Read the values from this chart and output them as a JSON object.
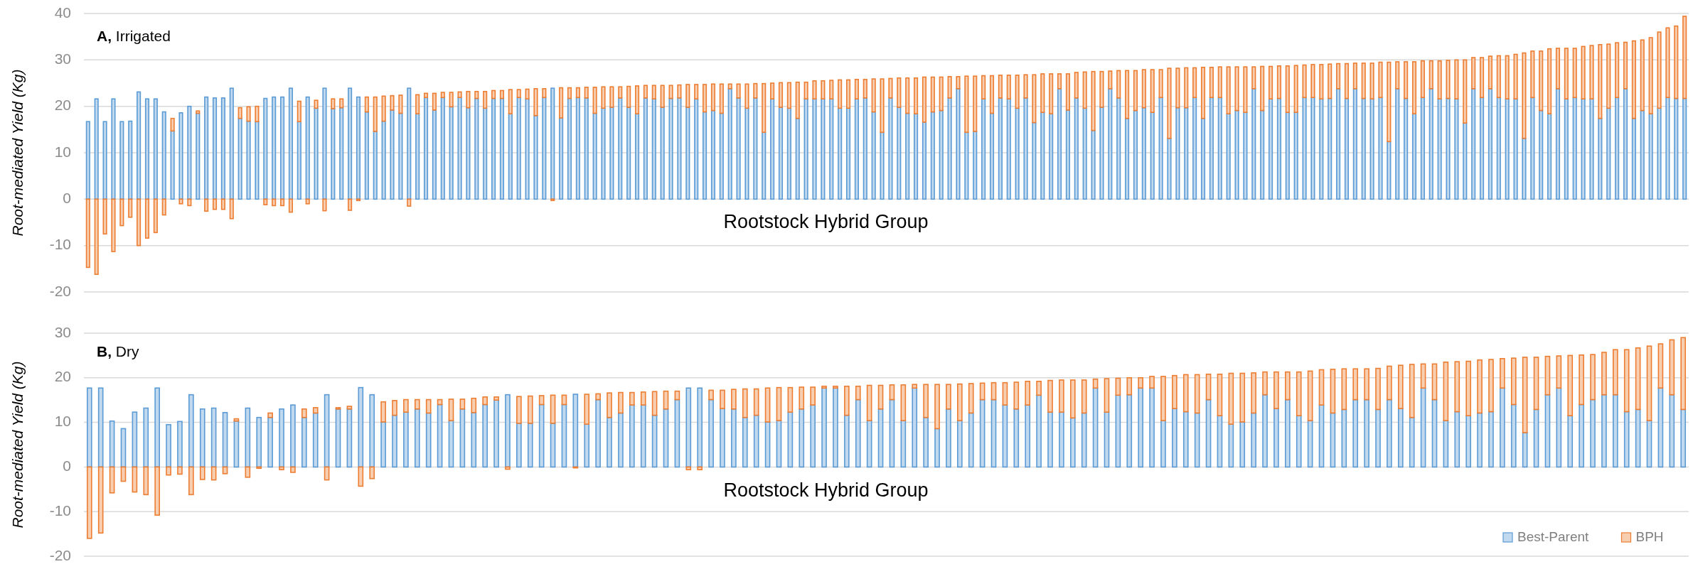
{
  "chart_data": [
    {
      "type": "bar",
      "title": "A, Irrigated",
      "xlabel": "Rootstock Hybrid Group",
      "ylabel": "Root-mediated Yield (Kg)",
      "stacked": true,
      "ylim": [
        -20,
        40
      ],
      "yticks": [
        -20,
        -10,
        0,
        10,
        20,
        30,
        40
      ],
      "grid": "y",
      "legend": false,
      "categories": [
        null,
        null,
        null,
        null,
        null,
        null,
        null,
        null,
        null,
        null,
        null,
        null,
        null,
        null,
        null,
        null,
        null,
        null,
        null,
        null,
        null,
        null,
        null,
        null,
        null,
        null,
        null,
        null,
        null,
        null,
        null,
        null,
        null,
        null,
        null,
        null,
        null,
        null,
        null,
        null,
        null,
        null,
        null,
        null,
        null,
        null,
        null,
        null,
        null,
        null,
        null,
        null,
        null,
        null,
        null,
        null,
        null,
        null,
        null,
        null,
        null,
        null,
        null,
        null,
        null,
        null,
        null,
        null,
        null,
        null,
        null,
        null,
        null,
        null,
        null,
        null,
        null,
        null,
        null,
        null,
        null,
        null,
        null,
        null,
        null,
        null,
        null,
        null,
        null,
        null,
        null,
        null,
        null,
        null,
        null,
        null,
        null,
        null,
        null,
        null,
        null,
        null,
        null,
        null,
        null,
        null,
        null,
        null,
        null,
        null,
        null,
        null,
        null,
        null,
        null,
        null,
        null,
        null,
        null,
        null,
        null,
        null,
        null,
        null,
        null,
        null,
        null,
        null,
        null,
        null,
        null,
        null,
        null,
        null,
        null,
        null,
        null,
        null,
        null,
        null,
        null,
        null,
        null,
        null,
        null,
        null,
        null,
        null,
        null,
        null,
        null,
        null,
        null,
        null,
        null,
        null,
        null,
        null,
        null,
        null,
        null,
        null,
        null,
        null,
        null,
        null,
        null,
        null,
        null,
        null,
        null,
        null,
        null,
        null,
        null,
        null,
        null,
        null,
        null,
        null,
        null,
        null,
        null,
        null,
        null,
        null,
        null,
        null,
        null,
        null
      ],
      "series": [
        {
          "color": "#5b9bd5",
          "values": [
            16.7,
            21.6,
            16.7,
            21.6,
            16.7,
            16.8,
            23.1,
            21.6,
            21.6,
            18.8,
            14.7,
            18.6,
            20,
            18.5,
            22,
            21.8,
            21.8,
            23.9,
            17.4,
            16.8,
            16.7,
            21.7,
            22,
            22,
            23.9,
            16.7,
            22,
            19.6,
            23.9,
            19.5,
            19.7,
            23.9,
            22,
            18.8,
            14.6,
            16.8,
            19.2,
            18.5,
            23.9,
            18.4,
            21.9,
            19.2,
            21.9,
            19.9,
            21.9,
            19.7,
            21.7,
            19.6,
            21.7,
            21.7,
            18.4,
            21.9,
            21.6,
            18,
            21.9,
            23.9,
            17.5,
            21.7,
            21.9,
            21.8,
            18.5,
            19.6,
            19.8,
            21.8,
            19.8,
            18.4,
            21.8,
            21.6,
            19.8,
            21.7,
            21.8,
            19.8,
            21.6,
            18.8,
            19.1,
            18.5,
            23.8,
            21.8,
            19.6,
            21.8,
            14.4,
            21.6,
            19.8,
            19.6,
            17.4,
            21.6,
            21.6,
            21.6,
            21.6,
            19.6,
            19.6,
            21.6,
            21.8,
            18.8,
            14.4,
            21.8,
            19.8,
            18.5,
            18.4,
            16.6,
            18.8,
            19.1,
            21.8,
            23.8,
            14.4,
            14.6,
            21.6,
            18.5,
            21.8,
            21.6,
            19.6,
            21.8,
            16.5,
            18.7,
            18.4,
            23.8,
            19.2,
            21.8,
            19.6,
            14.8,
            19.8,
            23.8,
            21.8,
            17.4,
            19.1,
            19.7,
            18.7,
            21.9,
            13.1,
            19.7,
            19.7,
            21.9,
            17.4,
            21.9,
            21.9,
            18.4,
            19.1,
            18.7,
            23.8,
            19.1,
            21.6,
            21.7,
            18.7,
            18.7,
            21.9,
            21.9,
            21.6,
            21.7,
            23.8,
            21.7,
            23.8,
            21.7,
            21.6,
            21.9,
            12.4,
            23.8,
            21.7,
            18.4,
            21.9,
            23.8,
            21.6,
            21.7,
            21.6,
            16.4,
            23.8,
            21.9,
            23.8,
            21.9,
            21.6,
            21.6,
            13.1,
            21.9,
            19.1,
            18.4,
            23.8,
            21.6,
            21.9,
            21.6,
            21.6,
            17.4,
            19.6,
            21.9,
            23.8,
            17.4,
            19.1,
            18.4,
            19.6,
            21.9,
            21.7,
            21.7
          ]
        },
        {
          "color": "#ed7d31",
          "values": [
            -14.7,
            -16.2,
            -7.5,
            -11.3,
            -5.7,
            -3.9,
            -10,
            -8.4,
            -7.2,
            -3.4,
            2.7,
            -1,
            -1.4,
            0.5,
            -2.6,
            -2.2,
            -2.2,
            -4.2,
            2.3,
            3.1,
            3.3,
            -1.2,
            -1.4,
            -1.4,
            -2.8,
            4.4,
            -1,
            1.7,
            -2.5,
            2.1,
            1.9,
            -2.4,
            -0.3,
            3.2,
            7.4,
            5.4,
            3.1,
            3.9,
            -1.5,
            4.1,
            0.9,
            3.6,
            1.1,
            3.1,
            1.2,
            3.5,
            1.5,
            3.6,
            1.7,
            1.7,
            5.2,
            1.7,
            2.1,
            5.8,
            1.9,
            -0.3,
            6.5,
            2.3,
            2.1,
            2.3,
            5.6,
            4.6,
            4.4,
            2.4,
            4.5,
            6,
            2.7,
            2.9,
            4.7,
            2.8,
            2.8,
            4.9,
            3.1,
            5.9,
            5.7,
            6.3,
            1,
            3,
            5.2,
            3.1,
            10.5,
            3.4,
            5.3,
            5.5,
            7.8,
            3.6,
            3.9,
            3.9,
            4,
            6.1,
            6.1,
            4.2,
            4,
            7.1,
            11.5,
            4.2,
            6.3,
            7.6,
            7.7,
            9.7,
            7.5,
            7.2,
            4.6,
            2.6,
            12.1,
            11.9,
            5,
            8.1,
            4.9,
            5.1,
            7.1,
            5,
            10.3,
            8.3,
            8.6,
            3.2,
            7.8,
            5.5,
            7.8,
            12.7,
            7.7,
            3.8,
            5.9,
            10.3,
            8.6,
            8.2,
            9.2,
            6,
            15.1,
            8.5,
            8.6,
            6.4,
            11,
            6.5,
            6.6,
            10.1,
            9.4,
            9.8,
            4.7,
            9.5,
            7,
            7,
            10,
            10.1,
            7,
            7.1,
            7.4,
            7.4,
            5.4,
            7.5,
            5.5,
            7.6,
            7.7,
            7.6,
            17.1,
            5.8,
            7.9,
            11.2,
            7.9,
            6,
            8.2,
            8.2,
            8.4,
            13.6,
            6.7,
            8.6,
            7,
            9,
            9.3,
            9.6,
            18.4,
            10,
            12.8,
            14,
            8.7,
            10.9,
            10.6,
            11.3,
            11.5,
            15.9,
            13.8,
            11.8,
            10,
            16.7,
            15.2,
            16.4,
            16.4,
            15,
            15.6,
            17.7
          ]
        }
      ]
    },
    {
      "type": "bar",
      "title": "B, Dry",
      "xlabel": "Rootstock Hybrid Group",
      "ylabel": "Root-mediated Yield (Kg)",
      "stacked": true,
      "ylim": [
        -20,
        30
      ],
      "yticks": [
        -20,
        -10,
        0,
        10,
        20,
        30
      ],
      "grid": "y",
      "legend": "bottom right",
      "categories": [
        null,
        null,
        null,
        null,
        null,
        null,
        null,
        null,
        null,
        null,
        null,
        null,
        null,
        null,
        null,
        null,
        null,
        null,
        null,
        null,
        null,
        null,
        null,
        null,
        null,
        null,
        null,
        null,
        null,
        null,
        null,
        null,
        null,
        null,
        null,
        null,
        null,
        null,
        null,
        null,
        null,
        null,
        null,
        null,
        null,
        null,
        null,
        null,
        null,
        null,
        null,
        null,
        null,
        null,
        null,
        null,
        null,
        null,
        null,
        null,
        null,
        null,
        null,
        null,
        null,
        null,
        null,
        null,
        null,
        null,
        null,
        null,
        null,
        null,
        null,
        null,
        null,
        null,
        null,
        null,
        null,
        null,
        null,
        null,
        null,
        null,
        null,
        null,
        null,
        null,
        null,
        null,
        null,
        null,
        null,
        null,
        null,
        null,
        null,
        null,
        null,
        null,
        null,
        null,
        null,
        null,
        null,
        null,
        null,
        null,
        null,
        null,
        null,
        null,
        null,
        null,
        null,
        null,
        null,
        null,
        null,
        null,
        null,
        null,
        null,
        null,
        null,
        null,
        null,
        null,
        null,
        null,
        null,
        null,
        null,
        null,
        null,
        null,
        null,
        null,
        null,
        null
      ],
      "series": [
        {
          "name": "Best-Parent",
          "color": "#5b9bd5",
          "values": [
            17.7,
            17.7,
            10.3,
            8.6,
            12.3,
            13.2,
            17.7,
            9.5,
            10.2,
            16.2,
            13,
            13.2,
            12.2,
            10.3,
            13.2,
            11.1,
            11.1,
            13,
            13.9,
            11.1,
            12.1,
            16.2,
            13,
            13,
            17.8,
            16.2,
            10.1,
            11.6,
            12.3,
            13,
            12.1,
            14,
            10.4,
            13,
            12.2,
            14,
            15,
            16.2,
            9.8,
            9.8,
            14,
            9.8,
            14,
            16.3,
            9.6,
            15.1,
            11.1,
            12.1,
            13.9,
            13.9,
            11.6,
            13,
            15.1,
            17.7,
            17.7,
            15.1,
            13.1,
            13,
            11.1,
            11.6,
            10.1,
            10.4,
            12.3,
            13,
            13.9,
            17.7,
            17.7,
            11.6,
            15.1,
            10.4,
            13,
            15.1,
            10.4,
            17.7,
            11.1,
            8.6,
            13,
            10.4,
            12.1,
            15.1,
            15.1,
            13.9,
            13,
            13.9,
            16.1,
            12.3,
            12.3,
            11,
            12.1,
            17.7,
            12.3,
            16.1,
            16.2,
            17.7,
            17.7,
            10.4,
            13.1,
            12.4,
            12.1,
            15.1,
            11.5,
            9.6,
            10.1,
            12.1,
            16.2,
            13.1,
            15.1,
            11.5,
            10.4,
            13.9,
            12.1,
            12.9,
            15.1,
            15.1,
            12.9,
            15.1,
            13.1,
            11.1,
            17.7,
            15.1,
            10.4,
            12.4,
            11.5,
            12.1,
            12.4,
            17.7,
            14,
            7.7,
            12.9,
            16.2,
            17.7,
            11.5,
            14,
            15.1,
            16.2,
            16.2,
            12.4,
            12.9,
            10.4,
            17.7,
            16.2,
            12.9
          ]
        },
        {
          "name": "BPH",
          "color": "#ed7d31",
          "values": [
            -16,
            -14.8,
            -5.8,
            -3.2,
            -5.6,
            -6.2,
            -10.8,
            -1.8,
            -1.6,
            -6.2,
            -2.8,
            -2.9,
            -1.5,
            0.5,
            -2.3,
            -0.3,
            1,
            -0.6,
            -1.2,
            1.9,
            1.2,
            -2.9,
            0.3,
            0.6,
            -4.3,
            -2.6,
            4.5,
            3.3,
            2.8,
            2.1,
            3,
            1.1,
            4.8,
            2.2,
            3.2,
            1.7,
            0.7,
            -0.5,
            6,
            6.1,
            2,
            6.3,
            2.1,
            -0.2,
            6.7,
            1.3,
            5.5,
            4.6,
            2.8,
            2.9,
            5.3,
            4,
            1.9,
            -0.6,
            -0.6,
            2.1,
            4.1,
            4.4,
            6.4,
            5.9,
            7.6,
            7.4,
            5.5,
            4.9,
            4,
            0.4,
            0.4,
            6.5,
            3,
            7.9,
            5.3,
            3.3,
            8,
            0.8,
            7.4,
            9.9,
            5.5,
            8.2,
            6.6,
            3.7,
            3.8,
            5,
            6,
            5.3,
            3.1,
            7.1,
            7.2,
            8.5,
            7.4,
            2,
            7.5,
            3.8,
            3.8,
            2.3,
            2.6,
            9.9,
            7.4,
            8.3,
            8.6,
            5.7,
            9.3,
            11.4,
            10.9,
            9,
            5.1,
            8.2,
            6.2,
            9.8,
            11.1,
            7.9,
            9.8,
            9.1,
            6.9,
            6.9,
            9.2,
            7.5,
            9.7,
            11.9,
            5.4,
            8,
            13.1,
            11.2,
            12.2,
            11.9,
            11.7,
            6.6,
            10.4,
            16.9,
            11.7,
            8.6,
            7.2,
            13.5,
            11.1,
            10.1,
            9.5,
            10.1,
            13.9,
            13.8,
            16.7,
            9.9,
            12.3,
            16.1
          ]
        }
      ]
    }
  ]
}
